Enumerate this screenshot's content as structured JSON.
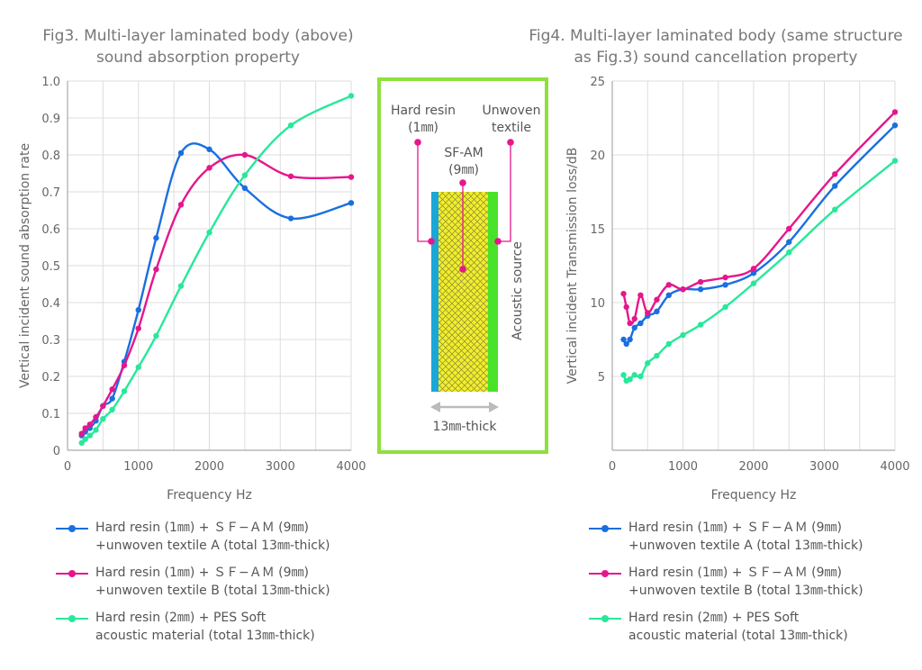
{
  "colors": {
    "blue": "#1a6fe0",
    "magenta": "#e6168c",
    "green": "#27e89a",
    "frame": "#8ee03c",
    "resin": "#1aa6d8",
    "core": "#f2ee2a",
    "textile": "#49e22a",
    "grey": "#bbbbbb"
  },
  "fig3_title": [
    "Fig3. Multi-layer laminated body (above)",
    "sound absorption property"
  ],
  "fig4_title": [
    "Fig4. Multi-layer laminated body (same structure",
    "as Fig.3)  sound cancellation property"
  ],
  "diagram": {
    "hard_resin": [
      "Hard resin",
      "(1㎜)"
    ],
    "sfam": [
      "SF-AM",
      "(9㎜)"
    ],
    "unwoven": [
      "Unwoven",
      "textile"
    ],
    "acoustic_source": "Acoustic source",
    "thickness": "13㎜-thick"
  },
  "legend": [
    [
      "Hard resin (1㎜) + ＳＦ−ＡＭ (9㎜)",
      "+unwoven textile A (total 13㎜-thick)"
    ],
    [
      "Hard resin (1㎜) + ＳＦ−ＡＭ (9㎜)",
      "+unwoven textile B (total 13㎜-thick)"
    ],
    [
      "Hard resin (2㎜) + PES Soft",
      "acoustic material (total 13㎜-thick)"
    ]
  ],
  "chart_data": [
    {
      "type": "line",
      "xlabel": "Frequency Hz",
      "ylabel": "Vertical incident sound absorption rate",
      "xlim": [
        0,
        4000
      ],
      "ylim": [
        0,
        1.0
      ],
      "xticks": [
        "0",
        "1000",
        "2000",
        "3000",
        "4000"
      ],
      "yticks": [
        "0",
        "0.1",
        "0.2",
        "0.3",
        "0.4",
        "0.5",
        "0.6",
        "0.7",
        "0.8",
        "0.9",
        "1.0"
      ],
      "grid": true,
      "series": [
        {
          "color_key": "blue",
          "points": [
            [
              200,
              0.04
            ],
            [
              250,
              0.05
            ],
            [
              315,
              0.06
            ],
            [
              400,
              0.08
            ],
            [
              500,
              0.12
            ],
            [
              630,
              0.14
            ],
            [
              800,
              0.24
            ],
            [
              1000,
              0.38
            ],
            [
              1250,
              0.575
            ],
            [
              1600,
              0.805
            ],
            [
              2000,
              0.815
            ],
            [
              2500,
              0.71
            ],
            [
              3150,
              0.628
            ],
            [
              4000,
              0.67
            ]
          ]
        },
        {
          "color_key": "magenta",
          "points": [
            [
              200,
              0.045
            ],
            [
              250,
              0.06
            ],
            [
              315,
              0.07
            ],
            [
              400,
              0.09
            ],
            [
              500,
              0.12
            ],
            [
              630,
              0.165
            ],
            [
              800,
              0.23
            ],
            [
              1000,
              0.33
            ],
            [
              1250,
              0.49
            ],
            [
              1600,
              0.665
            ],
            [
              2000,
              0.765
            ],
            [
              2500,
              0.8
            ],
            [
              3150,
              0.742
            ],
            [
              4000,
              0.74
            ]
          ]
        },
        {
          "color_key": "green",
          "points": [
            [
              200,
              0.02
            ],
            [
              250,
              0.03
            ],
            [
              315,
              0.04
            ],
            [
              400,
              0.055
            ],
            [
              500,
              0.085
            ],
            [
              630,
              0.11
            ],
            [
              800,
              0.16
            ],
            [
              1000,
              0.225
            ],
            [
              1250,
              0.31
            ],
            [
              1600,
              0.445
            ],
            [
              2000,
              0.59
            ],
            [
              2500,
              0.745
            ],
            [
              3150,
              0.88
            ],
            [
              4000,
              0.96
            ]
          ]
        }
      ]
    },
    {
      "type": "line",
      "xlabel": "Frequency Hz",
      "ylabel": "Vertical incident Transmission loss/dB",
      "xlim": [
        0,
        4000
      ],
      "ylim": [
        0,
        25
      ],
      "xticks": [
        "0",
        "1000",
        "2000",
        "3000",
        "4000"
      ],
      "yticks": [
        "5",
        "10",
        "15",
        "20",
        "25"
      ],
      "grid": true,
      "series": [
        {
          "color_key": "blue",
          "points": [
            [
              160,
              7.5
            ],
            [
              200,
              7.2
            ],
            [
              250,
              7.5
            ],
            [
              315,
              8.3
            ],
            [
              400,
              8.6
            ],
            [
              500,
              9.1
            ],
            [
              630,
              9.4
            ],
            [
              800,
              10.5
            ],
            [
              1000,
              10.9
            ],
            [
              1250,
              10.9
            ],
            [
              1600,
              11.2
            ],
            [
              2000,
              12.0
            ],
            [
              2500,
              14.1
            ],
            [
              3150,
              17.9
            ],
            [
              4000,
              22.0
            ]
          ]
        },
        {
          "color_key": "magenta",
          "points": [
            [
              160,
              10.6
            ],
            [
              200,
              9.7
            ],
            [
              250,
              8.6
            ],
            [
              315,
              8.9
            ],
            [
              400,
              10.5
            ],
            [
              500,
              9.3
            ],
            [
              630,
              10.2
            ],
            [
              800,
              11.2
            ],
            [
              1000,
              10.9
            ],
            [
              1250,
              11.4
            ],
            [
              1600,
              11.7
            ],
            [
              2000,
              12.3
            ],
            [
              2500,
              15.0
            ],
            [
              3150,
              18.7
            ],
            [
              4000,
              22.9
            ]
          ]
        },
        {
          "color_key": "green",
          "points": [
            [
              160,
              5.1
            ],
            [
              200,
              4.7
            ],
            [
              250,
              4.8
            ],
            [
              315,
              5.1
            ],
            [
              400,
              5.0
            ],
            [
              500,
              5.9
            ],
            [
              630,
              6.4
            ],
            [
              800,
              7.2
            ],
            [
              1000,
              7.8
            ],
            [
              1250,
              8.5
            ],
            [
              1600,
              9.7
            ],
            [
              2000,
              11.3
            ],
            [
              2500,
              13.4
            ],
            [
              3150,
              16.3
            ],
            [
              4000,
              19.6
            ]
          ]
        }
      ]
    }
  ]
}
